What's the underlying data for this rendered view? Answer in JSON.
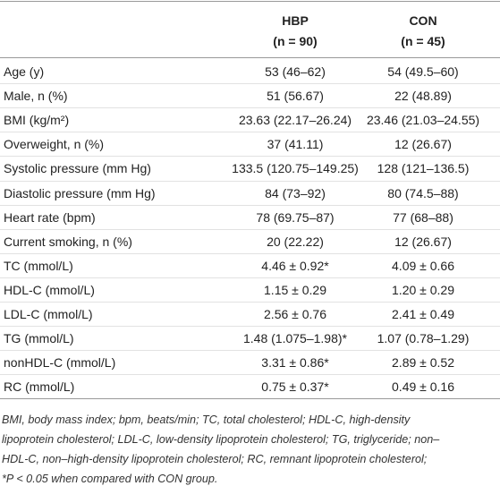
{
  "table": {
    "columns": [
      {
        "name": "HBP",
        "n": "(n = 90)"
      },
      {
        "name": "CON",
        "n": "(n = 45)"
      }
    ],
    "rows": [
      [
        "Age (y)",
        "53 (46–62)",
        "54 (49.5–60)"
      ],
      [
        "Male, n (%)",
        "51 (56.67)",
        "22 (48.89)"
      ],
      [
        "BMI (kg/m²)",
        "23.63 (22.17–26.24)",
        "23.46 (21.03–24.55)"
      ],
      [
        "Overweight, n (%)",
        "37 (41.11)",
        "12 (26.67)"
      ],
      [
        "Systolic pressure (mm Hg)",
        "133.5 (120.75–149.25)",
        "128 (121–136.5)"
      ],
      [
        "Diastolic pressure (mm Hg)",
        "84 (73–92)",
        "80 (74.5–88)"
      ],
      [
        "Heart rate (bpm)",
        "78 (69.75–87)",
        "77 (68–88)"
      ],
      [
        "Current smoking, n (%)",
        "20 (22.22)",
        "12 (26.67)"
      ],
      [
        "TC (mmol/L)",
        "4.46 ± 0.92*",
        "4.09 ± 0.66"
      ],
      [
        "HDL-C (mmol/L)",
        "1.15 ± 0.29",
        "1.20 ± 0.29"
      ],
      [
        "LDL-C (mmol/L)",
        "2.56 ± 0.76",
        "2.41 ± 0.49"
      ],
      [
        "TG (mmol/L)",
        "1.48 (1.075–1.98)*",
        "1.07 (0.78–1.29)"
      ],
      [
        "nonHDL-C (mmol/L)",
        "3.31 ± 0.86*",
        "2.89 ± 0.52"
      ],
      [
        "RC (mmol/L)",
        "0.75 ± 0.37*",
        "0.49 ± 0.16"
      ]
    ],
    "footnote": [
      "BMI, body mass index; bpm, beats/min; TC, total cholesterol; HDL-C, high-density",
      "lipoprotein cholesterol; LDL-C, low-density lipoprotein cholesterol; TG, triglyceride; non–",
      "HDL-C, non–high-density lipoprotein cholesterol; RC, remnant lipoprotein cholesterol;",
      "*P < 0.05 when compared with CON group."
    ]
  }
}
